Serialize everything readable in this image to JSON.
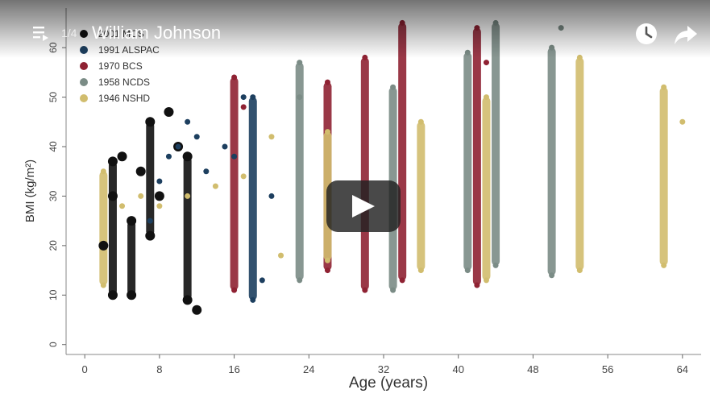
{
  "player": {
    "title": "William Johnson",
    "playlist_position": "1/4",
    "icons": {
      "playlist": "playlist-icon",
      "watch_later": "clock-icon",
      "share": "share-arrow-icon",
      "play": "play-icon"
    }
  },
  "chart_data": {
    "type": "scatter",
    "xlabel": "Age (years)",
    "ylabel": "BMI (kg/m²)",
    "xlim": [
      -2,
      66
    ],
    "ylim": [
      -2,
      68
    ],
    "xticks": [
      0,
      8,
      16,
      24,
      32,
      40,
      48,
      56,
      64
    ],
    "yticks": [
      0,
      10,
      20,
      30,
      40,
      50,
      60
    ],
    "legend_position": "top-left",
    "series": [
      {
        "name": "2001 MCS",
        "color": "#111111",
        "points": [
          [
            2,
            20
          ],
          [
            3,
            30
          ],
          [
            3,
            37
          ],
          [
            3,
            10
          ],
          [
            4,
            38
          ],
          [
            5,
            25
          ],
          [
            5,
            10
          ],
          [
            6,
            35
          ],
          [
            7,
            45
          ],
          [
            7,
            22
          ],
          [
            9,
            47
          ],
          [
            10,
            40
          ],
          [
            11,
            38
          ],
          [
            11,
            9
          ],
          [
            12,
            7
          ],
          [
            8,
            30
          ]
        ]
      },
      {
        "name": "1991 ALSPAC",
        "color": "#1d3f5f",
        "points": [
          [
            7,
            25
          ],
          [
            8,
            33
          ],
          [
            9,
            38
          ],
          [
            10,
            40
          ],
          [
            11,
            45
          ],
          [
            12,
            42
          ],
          [
            13,
            35
          ],
          [
            15,
            40
          ],
          [
            16,
            38
          ],
          [
            17,
            50
          ],
          [
            18,
            50
          ],
          [
            18,
            9
          ],
          [
            19,
            13
          ],
          [
            20,
            30
          ]
        ]
      },
      {
        "name": "1970 BCS",
        "color": "#8f2233",
        "points": [
          [
            16,
            54
          ],
          [
            16,
            11
          ],
          [
            17,
            48
          ],
          [
            26,
            53
          ],
          [
            26,
            15
          ],
          [
            30,
            58
          ],
          [
            30,
            11
          ],
          [
            34,
            65
          ],
          [
            34,
            13
          ],
          [
            42,
            64
          ],
          [
            42,
            12
          ],
          [
            43,
            57
          ]
        ]
      },
      {
        "name": "1958 NCDS",
        "color": "#7b8c86",
        "points": [
          [
            23,
            50
          ],
          [
            23,
            57
          ],
          [
            23,
            13
          ],
          [
            33,
            52
          ],
          [
            33,
            11
          ],
          [
            41,
            59
          ],
          [
            41,
            15
          ],
          [
            44,
            65
          ],
          [
            44,
            16
          ],
          [
            50,
            60
          ],
          [
            50,
            14
          ],
          [
            51,
            64
          ]
        ]
      },
      {
        "name": "1946 NSHD",
        "color": "#d1bd6e",
        "points": [
          [
            2,
            35
          ],
          [
            2,
            12
          ],
          [
            4,
            28
          ],
          [
            6,
            30
          ],
          [
            8,
            28
          ],
          [
            11,
            30
          ],
          [
            14,
            32
          ],
          [
            17,
            34
          ],
          [
            20,
            42
          ],
          [
            21,
            18
          ],
          [
            26,
            43
          ],
          [
            26,
            17
          ],
          [
            36,
            45
          ],
          [
            36,
            15
          ],
          [
            43,
            50
          ],
          [
            43,
            13
          ],
          [
            53,
            58
          ],
          [
            53,
            15
          ],
          [
            62,
            52
          ],
          [
            62,
            16
          ],
          [
            64,
            45
          ]
        ]
      }
    ]
  }
}
